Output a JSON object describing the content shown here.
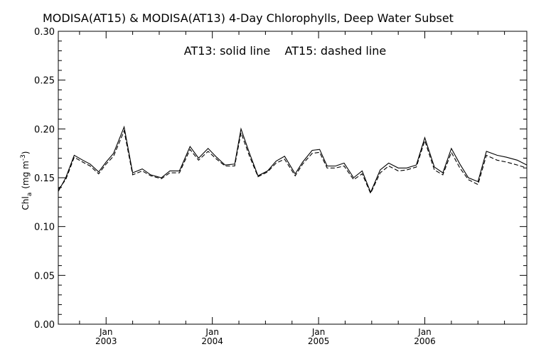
{
  "chart_data": {
    "type": "line",
    "title": "MODISA(AT15) & MODISA(AT13) 4-Day Chlorophylls, Deep Water Subset",
    "annotation": "AT13: solid line    AT15: dashed line",
    "ylabel": {
      "main": "Chl",
      "sub": "a",
      "units_open": "(mg m",
      "units_sup": "-3",
      "units_close": ")"
    },
    "xlabel": "",
    "ylim": [
      0.0,
      0.3
    ],
    "xlim": [
      2002.55,
      2006.96
    ],
    "yticks": [
      "0.00",
      "0.05",
      "0.10",
      "0.15",
      "0.20",
      "0.25",
      "0.30"
    ],
    "xticks": [
      {
        "x": 2003.0,
        "month": "Jan",
        "year": "2003"
      },
      {
        "x": 2004.0,
        "month": "Jan",
        "year": "2004"
      },
      {
        "x": 2005.0,
        "month": "Jan",
        "year": "2005"
      },
      {
        "x": 2006.0,
        "month": "Jan",
        "year": "2006"
      }
    ],
    "x": [
      2002.55,
      2002.62,
      2002.7,
      2002.78,
      2002.85,
      2002.93,
      2003.0,
      2003.07,
      2003.17,
      2003.25,
      2003.34,
      2003.42,
      2003.52,
      2003.6,
      2003.69,
      2003.79,
      2003.87,
      2003.96,
      2004.04,
      2004.12,
      2004.21,
      2004.27,
      2004.35,
      2004.43,
      2004.52,
      2004.6,
      2004.68,
      2004.78,
      2004.85,
      2004.94,
      2005.01,
      2005.08,
      2005.16,
      2005.24,
      2005.33,
      2005.41,
      2005.49,
      2005.58,
      2005.66,
      2005.75,
      2005.83,
      2005.92,
      2006.0,
      2006.09,
      2006.17,
      2006.25,
      2006.33,
      2006.41,
      2006.5,
      2006.58,
      2006.68,
      2006.77,
      2006.87,
      2006.96
    ],
    "series": [
      {
        "style": "solid",
        "values": [
          0.136,
          0.15,
          0.173,
          0.168,
          0.164,
          0.156,
          0.166,
          0.175,
          0.202,
          0.155,
          0.159,
          0.153,
          0.15,
          0.157,
          0.157,
          0.182,
          0.17,
          0.18,
          0.171,
          0.163,
          0.164,
          0.2,
          0.175,
          0.152,
          0.157,
          0.167,
          0.172,
          0.154,
          0.166,
          0.178,
          0.179,
          0.162,
          0.162,
          0.165,
          0.15,
          0.157,
          0.135,
          0.158,
          0.165,
          0.16,
          0.16,
          0.163,
          0.191,
          0.161,
          0.155,
          0.18,
          0.164,
          0.15,
          0.146,
          0.177,
          0.173,
          0.171,
          0.168,
          0.163
        ]
      },
      {
        "style": "dashed",
        "values": [
          0.138,
          0.148,
          0.171,
          0.166,
          0.162,
          0.154,
          0.164,
          0.172,
          0.198,
          0.153,
          0.157,
          0.152,
          0.149,
          0.155,
          0.155,
          0.179,
          0.168,
          0.177,
          0.169,
          0.162,
          0.162,
          0.196,
          0.172,
          0.151,
          0.156,
          0.165,
          0.169,
          0.152,
          0.164,
          0.175,
          0.176,
          0.16,
          0.16,
          0.162,
          0.148,
          0.154,
          0.134,
          0.155,
          0.162,
          0.157,
          0.158,
          0.161,
          0.188,
          0.158,
          0.153,
          0.176,
          0.16,
          0.148,
          0.143,
          0.173,
          0.168,
          0.166,
          0.163,
          0.16
        ]
      }
    ]
  }
}
